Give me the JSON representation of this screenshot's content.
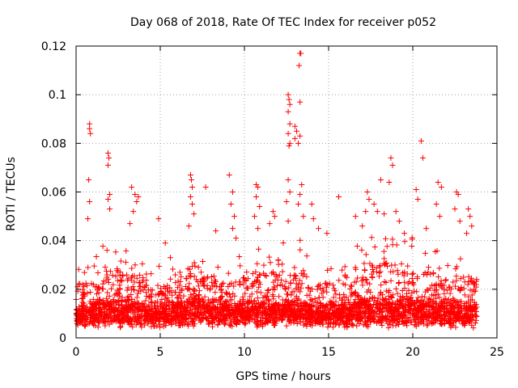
{
  "chart_data": {
    "type": "scatter",
    "title": "Day 068 of 2018, Rate Of TEC Index for receiver p052",
    "xlabel": "GPS time / hours",
    "ylabel": "ROTI / TECUs",
    "xlim": [
      0,
      25
    ],
    "ylim": [
      0,
      0.12
    ],
    "xticks": [
      0,
      5,
      10,
      15,
      20,
      25
    ],
    "yticks": [
      0,
      0.02,
      0.04,
      0.06,
      0.08,
      0.1,
      0.12
    ],
    "xtick_labels": [
      "0",
      "5",
      "10",
      "15",
      "20",
      "25"
    ],
    "ytick_labels": [
      "0",
      "0.02",
      "0.04",
      "0.06",
      "0.08",
      "0.1",
      "0.12"
    ],
    "grid": true,
    "marker": "plus",
    "color": "#ff0000",
    "series": [
      {
        "name": "ROTI p052",
        "points": [
          [
            0.8,
            0.088
          ],
          [
            0.8,
            0.086
          ],
          [
            0.85,
            0.084
          ],
          [
            0.75,
            0.065
          ],
          [
            0.8,
            0.056
          ],
          [
            0.7,
            0.049
          ],
          [
            1.9,
            0.076
          ],
          [
            1.95,
            0.074
          ],
          [
            1.9,
            0.071
          ],
          [
            2.0,
            0.059
          ],
          [
            1.9,
            0.057
          ],
          [
            2.0,
            0.053
          ],
          [
            3.3,
            0.062
          ],
          [
            3.5,
            0.059
          ],
          [
            3.7,
            0.058
          ],
          [
            3.6,
            0.056
          ],
          [
            3.4,
            0.052
          ],
          [
            3.2,
            0.047
          ],
          [
            4.9,
            0.049
          ],
          [
            5.3,
            0.039
          ],
          [
            5.6,
            0.033
          ],
          [
            6.8,
            0.067
          ],
          [
            6.85,
            0.065
          ],
          [
            6.9,
            0.062
          ],
          [
            6.8,
            0.058
          ],
          [
            6.9,
            0.055
          ],
          [
            7.0,
            0.051
          ],
          [
            6.7,
            0.046
          ],
          [
            7.7,
            0.062
          ],
          [
            8.3,
            0.044
          ],
          [
            9.1,
            0.067
          ],
          [
            9.3,
            0.06
          ],
          [
            9.2,
            0.055
          ],
          [
            9.4,
            0.05
          ],
          [
            9.3,
            0.045
          ],
          [
            9.5,
            0.041
          ],
          [
            10.7,
            0.063
          ],
          [
            10.8,
            0.062
          ],
          [
            10.7,
            0.058
          ],
          [
            10.9,
            0.054
          ],
          [
            10.6,
            0.05
          ],
          [
            10.8,
            0.045
          ],
          [
            11.7,
            0.052
          ],
          [
            11.8,
            0.05
          ],
          [
            11.5,
            0.047
          ],
          [
            12.6,
            0.1
          ],
          [
            12.65,
            0.098
          ],
          [
            12.7,
            0.096
          ],
          [
            12.6,
            0.093
          ],
          [
            12.7,
            0.088
          ],
          [
            12.6,
            0.084
          ],
          [
            12.7,
            0.08
          ],
          [
            12.65,
            0.079
          ],
          [
            12.6,
            0.065
          ],
          [
            12.7,
            0.06
          ],
          [
            12.5,
            0.056
          ],
          [
            12.6,
            0.048
          ],
          [
            13.0,
            0.087
          ],
          [
            13.1,
            0.085
          ],
          [
            13.0,
            0.082
          ],
          [
            13.3,
            0.083
          ],
          [
            13.3,
            0.117
          ],
          [
            13.35,
            0.117
          ],
          [
            13.25,
            0.112
          ],
          [
            13.3,
            0.097
          ],
          [
            13.2,
            0.08
          ],
          [
            13.4,
            0.063
          ],
          [
            13.3,
            0.059
          ],
          [
            13.2,
            0.055
          ],
          [
            13.5,
            0.05
          ],
          [
            14.0,
            0.055
          ],
          [
            14.1,
            0.049
          ],
          [
            14.4,
            0.045
          ],
          [
            14.9,
            0.043
          ],
          [
            15.6,
            0.058
          ],
          [
            16.6,
            0.05
          ],
          [
            17.0,
            0.046
          ],
          [
            17.3,
            0.06
          ],
          [
            17.4,
            0.057
          ],
          [
            17.2,
            0.052
          ],
          [
            17.7,
            0.055
          ],
          [
            17.9,
            0.052
          ],
          [
            18.1,
            0.065
          ],
          [
            18.3,
            0.051
          ],
          [
            18.7,
            0.074
          ],
          [
            18.8,
            0.071
          ],
          [
            18.6,
            0.064
          ],
          [
            19.0,
            0.052
          ],
          [
            19.2,
            0.048
          ],
          [
            19.5,
            0.043
          ],
          [
            20.2,
            0.061
          ],
          [
            20.5,
            0.081
          ],
          [
            20.6,
            0.074
          ],
          [
            20.3,
            0.057
          ],
          [
            20.8,
            0.045
          ],
          [
            21.5,
            0.064
          ],
          [
            21.7,
            0.062
          ],
          [
            21.4,
            0.055
          ],
          [
            21.6,
            0.05
          ],
          [
            22.6,
            0.06
          ],
          [
            22.7,
            0.059
          ],
          [
            22.5,
            0.053
          ],
          [
            22.8,
            0.048
          ],
          [
            23.3,
            0.053
          ],
          [
            23.4,
            0.05
          ],
          [
            23.5,
            0.046
          ],
          [
            23.2,
            0.043
          ]
        ],
        "segments": [
          {
            "x0": 0.0,
            "x1": 1.2,
            "base": 0.011,
            "peak": 0.032
          },
          {
            "x0": 1.2,
            "x1": 2.6,
            "base": 0.013,
            "peak": 0.04
          },
          {
            "x0": 2.6,
            "x1": 4.0,
            "base": 0.012,
            "peak": 0.036
          },
          {
            "x0": 4.0,
            "x1": 5.5,
            "base": 0.011,
            "peak": 0.03
          },
          {
            "x0": 5.5,
            "x1": 6.5,
            "base": 0.012,
            "peak": 0.032
          },
          {
            "x0": 6.5,
            "x1": 7.5,
            "base": 0.014,
            "peak": 0.04
          },
          {
            "x0": 7.5,
            "x1": 9.0,
            "base": 0.012,
            "peak": 0.034
          },
          {
            "x0": 9.0,
            "x1": 10.5,
            "base": 0.011,
            "peak": 0.034
          },
          {
            "x0": 10.5,
            "x1": 12.0,
            "base": 0.012,
            "peak": 0.038
          },
          {
            "x0": 12.0,
            "x1": 13.8,
            "base": 0.013,
            "peak": 0.042
          },
          {
            "x0": 13.8,
            "x1": 15.0,
            "base": 0.01,
            "peak": 0.03
          },
          {
            "x0": 15.0,
            "x1": 16.5,
            "base": 0.011,
            "peak": 0.03
          },
          {
            "x0": 16.5,
            "x1": 18.0,
            "base": 0.014,
            "peak": 0.042
          },
          {
            "x0": 18.0,
            "x1": 20.0,
            "base": 0.014,
            "peak": 0.042
          },
          {
            "x0": 20.0,
            "x1": 21.5,
            "base": 0.013,
            "peak": 0.036
          },
          {
            "x0": 21.5,
            "x1": 22.5,
            "base": 0.012,
            "peak": 0.034
          },
          {
            "x0": 22.5,
            "x1": 23.8,
            "base": 0.012,
            "peak": 0.034
          }
        ]
      }
    ]
  }
}
